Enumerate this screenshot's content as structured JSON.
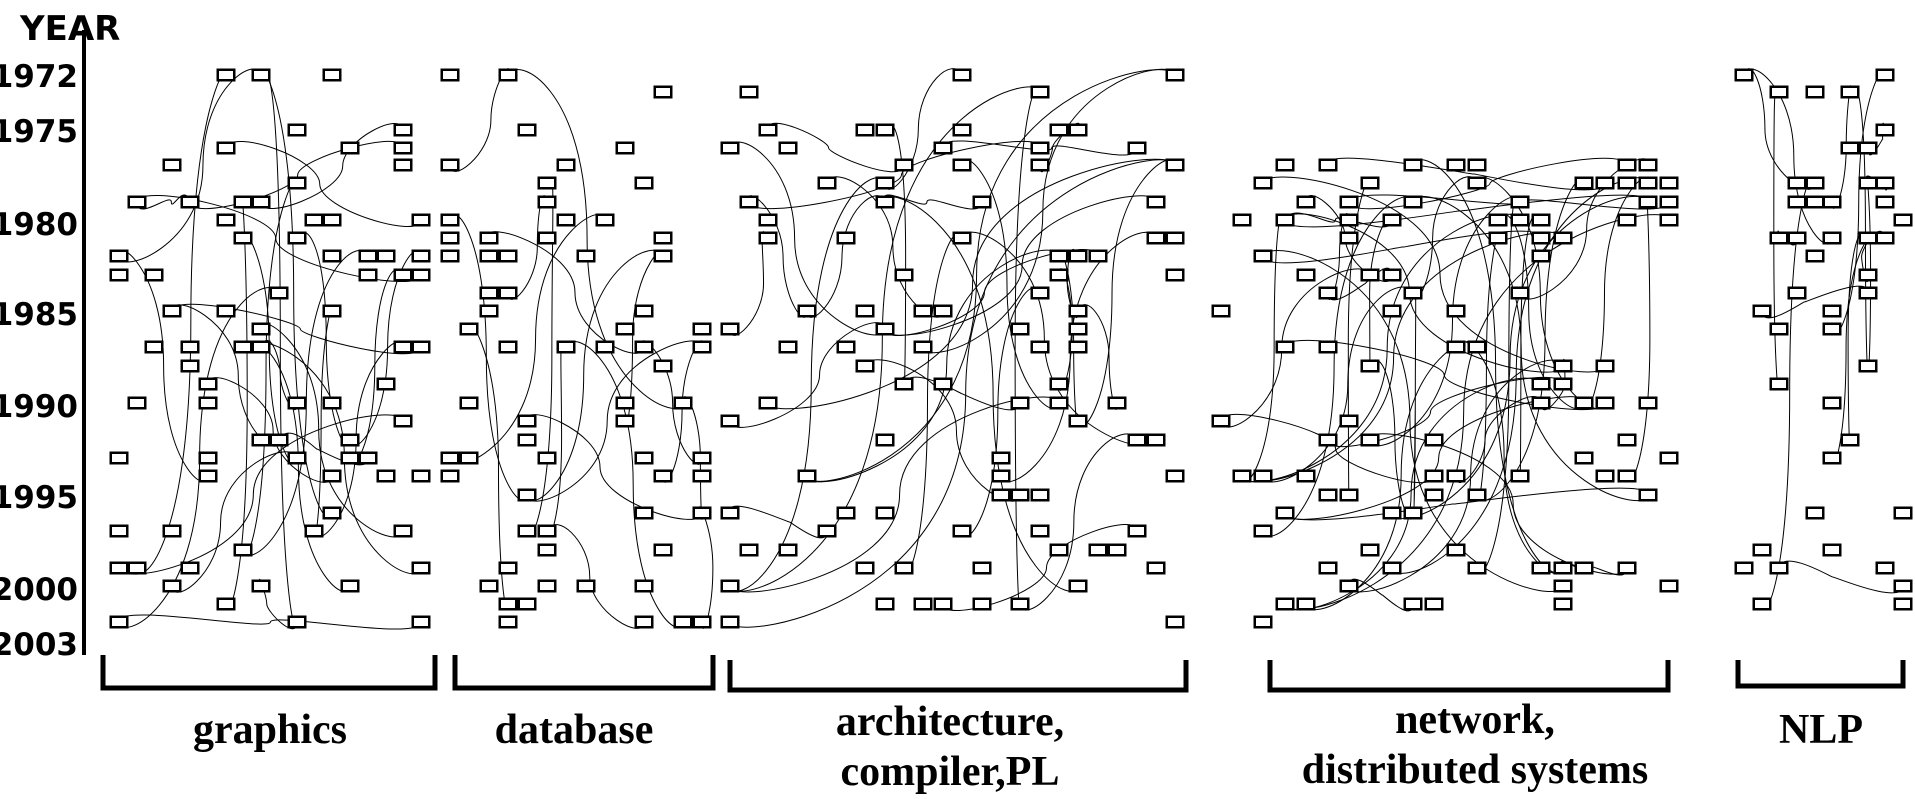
{
  "axis": {
    "title": "YEAR",
    "years": [
      "1972",
      "1975",
      "1980",
      "1985",
      "1990",
      "1995",
      "2000",
      "2003"
    ]
  },
  "groups": [
    {
      "id": "graphics",
      "lines": [
        "graphics"
      ]
    },
    {
      "id": "database",
      "lines": [
        "database"
      ]
    },
    {
      "id": "architecture",
      "lines": [
        "architecture,",
        "compiler,PL"
      ]
    },
    {
      "id": "network",
      "lines": [
        "network,",
        "distributed systems"
      ]
    },
    {
      "id": "nlp",
      "lines": [
        "NLP"
      ]
    }
  ],
  "colors": {
    "ink": "#000000",
    "paper": "#ffffff"
  }
}
